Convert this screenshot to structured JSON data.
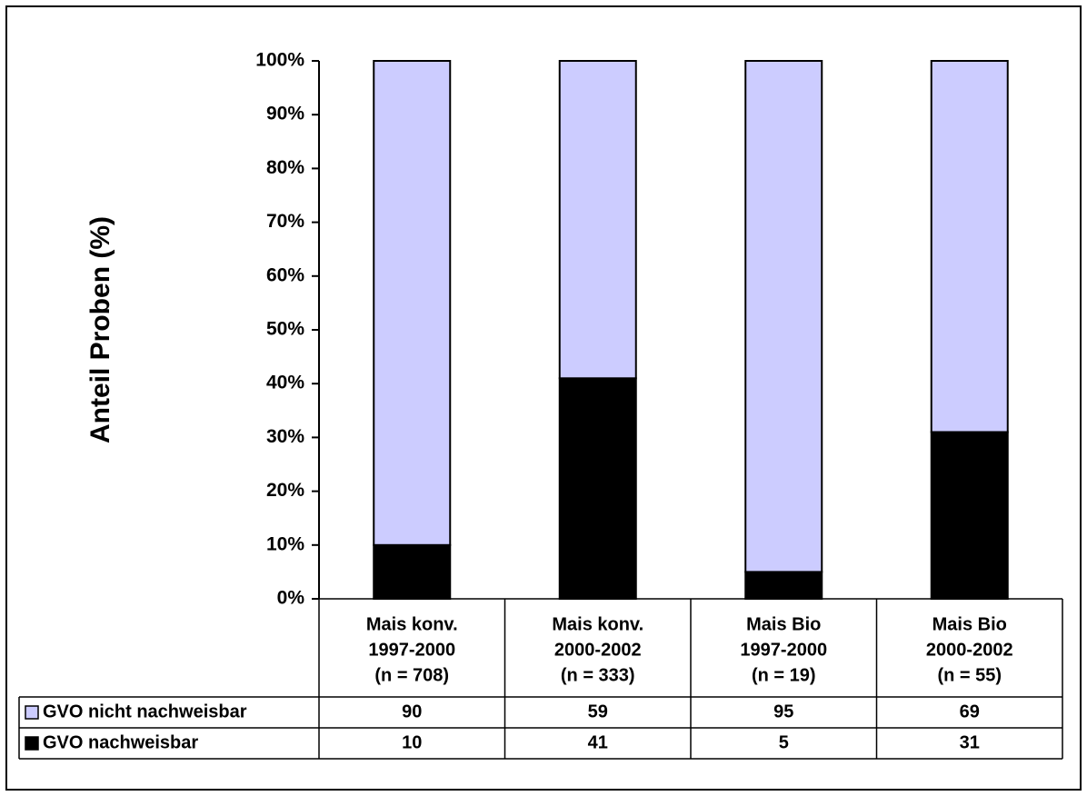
{
  "chart_data": {
    "type": "bar",
    "stacked": true,
    "ylabel": "Anteil Proben (%)",
    "ylim": [
      0,
      100
    ],
    "y_ticks": [
      "0%",
      "10%",
      "20%",
      "30%",
      "40%",
      "50%",
      "60%",
      "70%",
      "80%",
      "90%",
      "100%"
    ],
    "categories": [
      [
        "Mais konv.",
        "1997-2000",
        "(n = 708)"
      ],
      [
        "Mais konv.",
        "2000-2002",
        "(n = 333)"
      ],
      [
        "Mais Bio",
        "1997-2000",
        "(n = 19)"
      ],
      [
        "Mais Bio",
        "2000-2002",
        "(n = 55)"
      ]
    ],
    "series": [
      {
        "name": "GVO nachweisbar",
        "values": [
          10,
          41,
          5,
          31
        ],
        "color": "#000000"
      },
      {
        "name": "GVO nicht nachweisbar",
        "values": [
          90,
          59,
          95,
          69
        ],
        "color": "#ccccff"
      }
    ],
    "grid": false,
    "legend": "data-table"
  }
}
